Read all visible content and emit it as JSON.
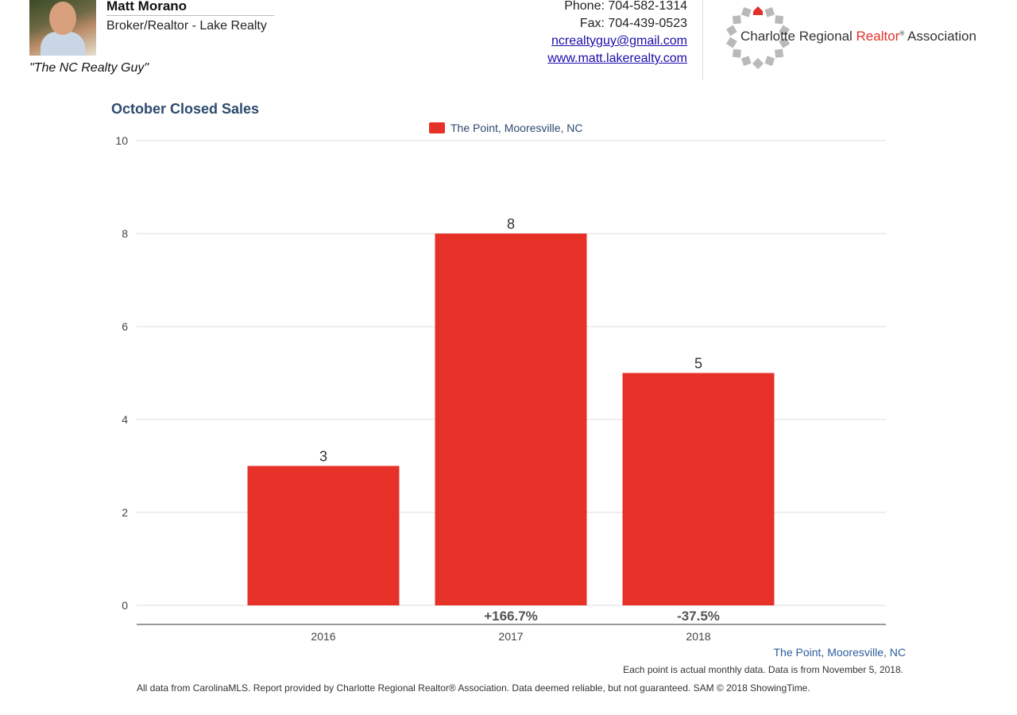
{
  "header": {
    "agent_name": "Matt Morano",
    "agent_title": "Broker/Realtor - Lake Realty",
    "tagline": "\"The NC Realty Guy\"",
    "phone": "Phone: 704-582-1314",
    "fax": "Fax: 704-439-0523",
    "email": "ncrealtyguy@gmail.com",
    "website": "www.matt.lakerealty.com",
    "logo": {
      "text_pre": "Charlotte Regional ",
      "text_red": "Realtor",
      "text_sup": "®",
      "text_post": " Association",
      "accent_color": "#e0312a",
      "icon": "house-ring-logo"
    }
  },
  "chart_data": {
    "type": "bar",
    "title": "October Closed Sales",
    "categories": [
      "2016",
      "2017",
      "2018"
    ],
    "series": [
      {
        "name": "The Point, Mooresville, NC",
        "values": [
          3,
          8,
          5
        ],
        "color": "#e63128"
      }
    ],
    "data_labels": [
      "3",
      "8",
      "5"
    ],
    "change_labels": [
      "",
      "+166.7%",
      "-37.5%"
    ],
    "ylim": [
      0,
      10
    ],
    "y_ticks": [
      "0",
      "2",
      "4",
      "6",
      "8",
      "10"
    ],
    "grid": true,
    "legend_position": "top-center",
    "series_footer": "The Point, Mooresville, NC"
  },
  "notes": {
    "data_note": "Each point is actual monthly data. Data is from November 5, 2018.",
    "footer": "All data from CarolinaMLS. Report provided by Charlotte Regional Realtor® Association. Data deemed reliable, but not guaranteed. SAM © 2018 ShowingTime."
  }
}
